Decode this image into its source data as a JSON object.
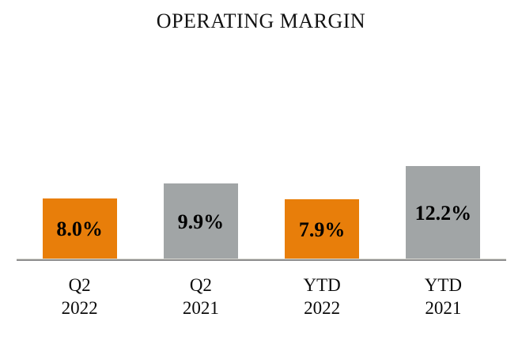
{
  "title": "OPERATING MARGIN",
  "chart_data": {
    "type": "bar",
    "title": "OPERATING MARGIN",
    "categories": [
      "Q2 2022",
      "Q2 2021",
      "YTD 2022",
      "YTD 2021"
    ],
    "values": [
      8.0,
      9.9,
      7.9,
      12.2
    ],
    "labels": [
      "8.0%",
      "9.9%",
      "7.9%",
      "12.2%"
    ],
    "bar_colors": [
      "#E87E0A",
      "#A1A5A6",
      "#E87E0A",
      "#A1A5A6"
    ],
    "label_color": "#000000",
    "axis_line_color": "#8F8F8F",
    "xlabel": "",
    "ylabel": "",
    "ylim": [
      0,
      12.2
    ],
    "grid": false,
    "legend": false,
    "label_position": "center-inside"
  },
  "x_ticks": [
    {
      "line1": "Q2",
      "line2": "2022"
    },
    {
      "line1": "Q2",
      "line2": "2021"
    },
    {
      "line1": "YTD",
      "line2": "2022"
    },
    {
      "line1": "YTD",
      "line2": "2021"
    }
  ],
  "colors": {
    "background": "#FFFFFF",
    "accent_orange": "#E87E0A",
    "neutral_gray": "#A1A5A6",
    "text": "#000000"
  }
}
